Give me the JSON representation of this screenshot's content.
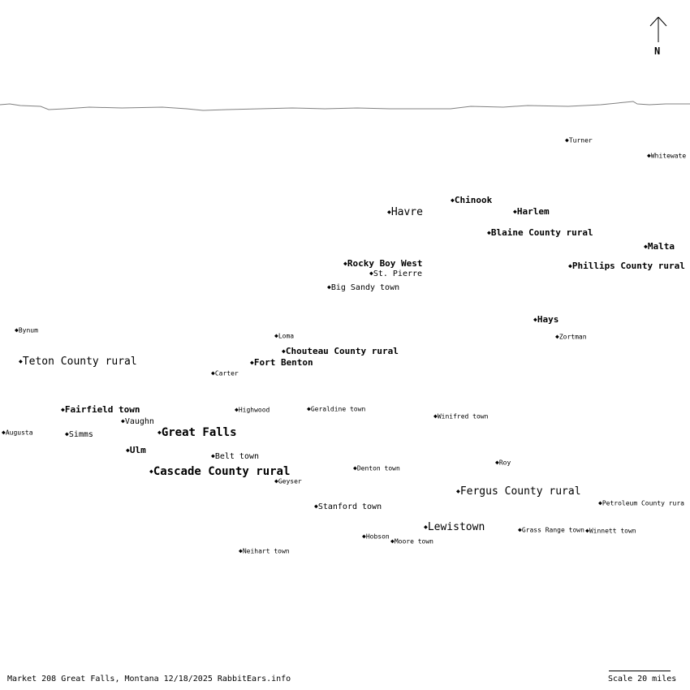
{
  "map": {
    "compass_label": "N",
    "footer": "Market 208 Great Falls, Montana 12/18/2025 RabbitEars.info",
    "scale_label": "Scale 20 miles",
    "marker": "◆",
    "border_color": "#808080"
  },
  "places": [
    {
      "name": "Turner"
    },
    {
      "name": "Whitewate"
    },
    {
      "name": "Chinook"
    },
    {
      "name": "Havre"
    },
    {
      "name": "Harlem"
    },
    {
      "name": "Blaine County rural"
    },
    {
      "name": "Malta"
    },
    {
      "name": "Rocky Boy West"
    },
    {
      "name": "St. Pierre"
    },
    {
      "name": "Phillips County rural"
    },
    {
      "name": "Big Sandy town"
    },
    {
      "name": "Hays"
    },
    {
      "name": "Bynum"
    },
    {
      "name": "Loma"
    },
    {
      "name": "Zortman"
    },
    {
      "name": "Chouteau County rural"
    },
    {
      "name": "Teton County rural"
    },
    {
      "name": "Fort Benton"
    },
    {
      "name": "Carter"
    },
    {
      "name": "Fairfield town"
    },
    {
      "name": "Highwood"
    },
    {
      "name": "Geraldine town"
    },
    {
      "name": "Winifred town"
    },
    {
      "name": "Vaughn"
    },
    {
      "name": "Augusta"
    },
    {
      "name": "Simms"
    },
    {
      "name": "Great Falls"
    },
    {
      "name": "Ulm"
    },
    {
      "name": "Belt town"
    },
    {
      "name": "Roy"
    },
    {
      "name": "Denton town"
    },
    {
      "name": "Cascade County rural"
    },
    {
      "name": "Geyser"
    },
    {
      "name": "Fergus County rural"
    },
    {
      "name": "Petroleum County rura"
    },
    {
      "name": "Stanford town"
    },
    {
      "name": "Lewistown"
    },
    {
      "name": "Grass Range town"
    },
    {
      "name": "Winnett town"
    },
    {
      "name": "Hobson"
    },
    {
      "name": "Moore town"
    },
    {
      "name": "Neihart town"
    }
  ]
}
